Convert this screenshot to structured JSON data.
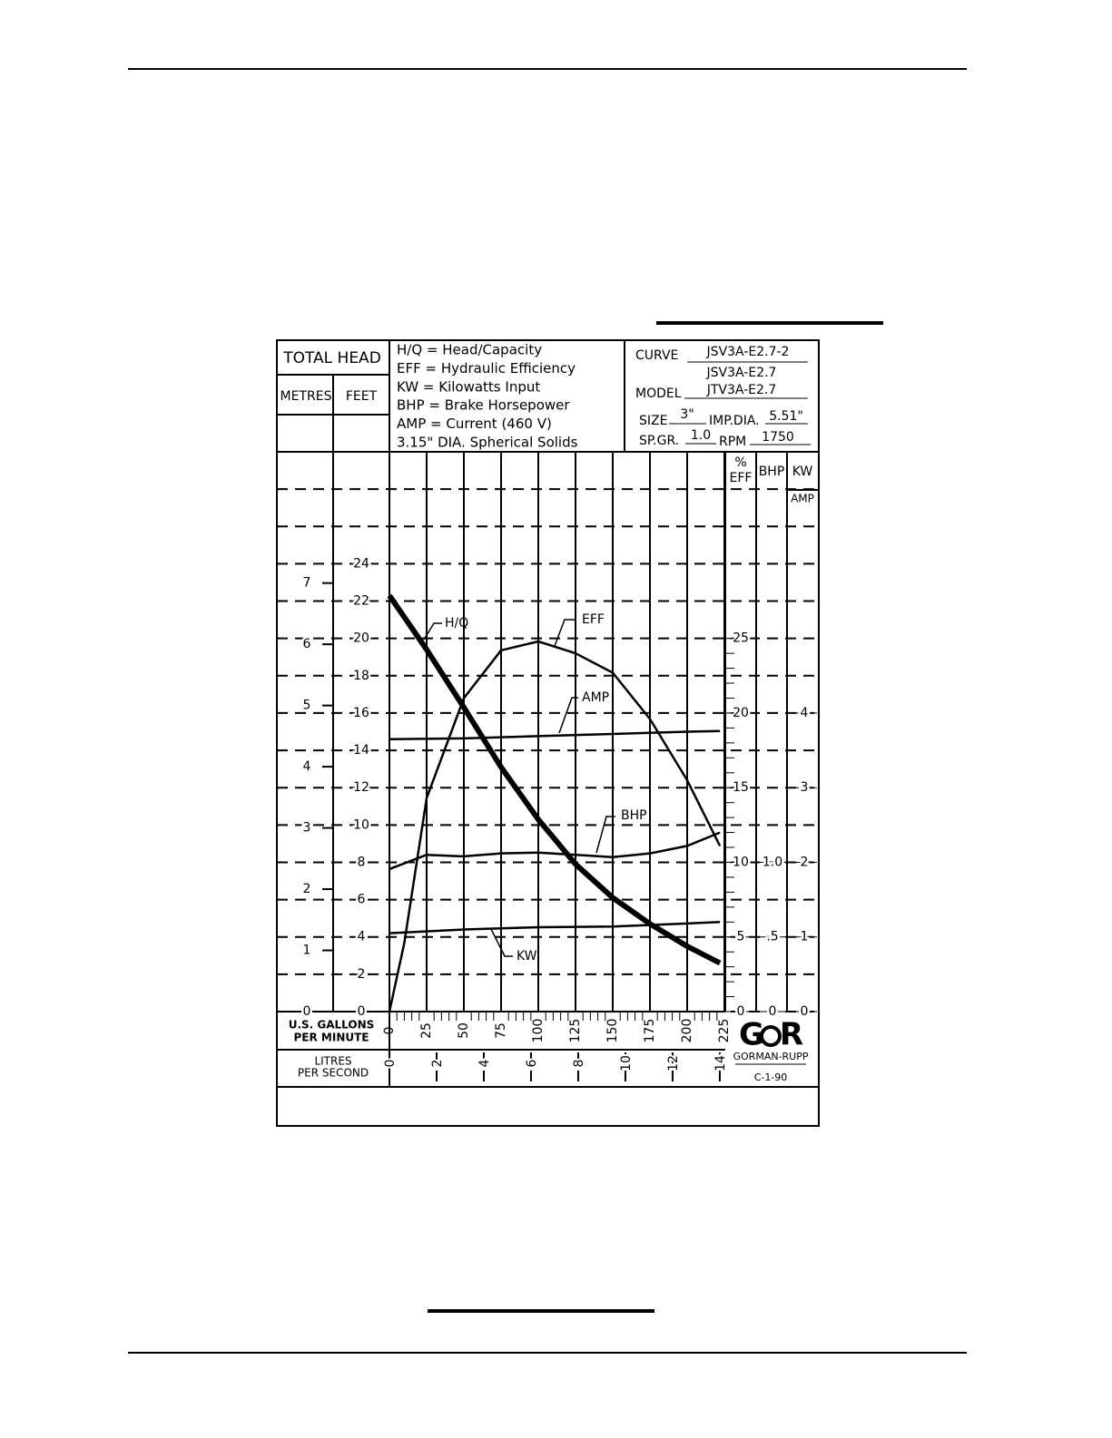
{
  "chart_data": {
    "type": "line",
    "title": [
      "TOTAL HEAD"
    ],
    "head_units": [
      "METRES",
      "FEET"
    ],
    "legend_text": [
      "H/Q = Head/Capacity",
      "EFF = Hydraulic Efficiency",
      "KW  = Kilowatts Input",
      "BHP = Brake Horsepower",
      "AMP = Current (460 V)",
      "3.15\" DIA. Spherical Solids"
    ],
    "info": {
      "curve_label": "CURVE",
      "curve": "JSV3A-E2.7-2",
      "model_top": "JSV3A-E2.7",
      "model_label": "MODEL",
      "model": "JTV3A-E2.7",
      "size_label": "SIZE",
      "size": "3\"",
      "imp_label": "IMP.DIA.",
      "imp": "5.51\"",
      "spgr_label": "SP.GR.",
      "spgr": "1.0",
      "rpm_label": "RPM",
      "rpm": "1750"
    },
    "x_label": [
      "U.S. GALLONS",
      "PER MINUTE"
    ],
    "lps_label": [
      "LITRES",
      "PER SECOND"
    ],
    "xlim": [
      0,
      225
    ],
    "xticks": [
      0,
      25,
      50,
      75,
      100,
      125,
      150,
      175,
      200,
      225
    ],
    "lps_lim": [
      0,
      14.195
    ],
    "lps_ticks": [
      0,
      2,
      4,
      6,
      8,
      10,
      12,
      14
    ],
    "ylim": [
      0,
      30
    ],
    "yticks": [
      0,
      2,
      4,
      6,
      8,
      10,
      12,
      14,
      16,
      18,
      20,
      22,
      24
    ],
    "metres_lim": [
      0,
      9.144
    ],
    "metres_ticks": [
      0,
      1,
      2,
      3,
      4,
      5,
      6,
      7
    ],
    "eff_header": [
      "%",
      "EFF"
    ],
    "eff_lim": [
      0,
      37.5
    ],
    "eff_ticks": [
      0,
      5,
      10,
      15,
      20,
      25
    ],
    "bhp_header": "BHP",
    "bhp_lim": [
      0,
      3.75
    ],
    "bhp_ticks": [
      0,
      {
        "value": 0.5,
        "label": ".5"
      },
      {
        "value": 1,
        "label": "1.0"
      }
    ],
    "kw_header": "KW",
    "amp_header": "AMP",
    "kw_lim": [
      0,
      7.5
    ],
    "kw_ticks": [
      0,
      1,
      2,
      3,
      4
    ],
    "grid": true,
    "series": [
      {
        "name": "H/Q",
        "axis": "y",
        "color": "#000000",
        "x": [
          0,
          25,
          50,
          75,
          100,
          125,
          150,
          175,
          200,
          222
        ],
        "values": [
          22.3,
          19.4,
          16.3,
          13.1,
          10.3,
          7.9,
          6.1,
          4.7,
          3.5,
          2.6
        ]
      },
      {
        "name": "EFF",
        "axis": "eff",
        "color": "#000000",
        "x": [
          0,
          10,
          25,
          50,
          75,
          100,
          125,
          150,
          175,
          200,
          222
        ],
        "values": [
          0,
          4.6,
          14.3,
          21.0,
          24.2,
          24.8,
          24.0,
          22.7,
          19.6,
          15.5,
          11.1
        ]
      },
      {
        "name": "AMP",
        "axis": "kw",
        "color": "#000000",
        "x": [
          0,
          50,
          100,
          150,
          200,
          222
        ],
        "values": [
          3.65,
          3.66,
          3.69,
          3.72,
          3.75,
          3.76
        ]
      },
      {
        "name": "BHP",
        "axis": "bhp",
        "color": "#000000",
        "x": [
          0,
          25,
          50,
          75,
          100,
          125,
          150,
          175,
          200,
          222
        ],
        "values": [
          0.955,
          1.05,
          1.04,
          1.06,
          1.065,
          1.05,
          1.035,
          1.06,
          1.11,
          1.2
        ]
      },
      {
        "name": "KW",
        "axis": "kw",
        "color": "#000000",
        "x": [
          0,
          50,
          100,
          150,
          200,
          222
        ],
        "values": [
          1.05,
          1.1,
          1.13,
          1.14,
          1.18,
          1.2
        ]
      }
    ],
    "logo_letters": [
      "G",
      "R"
    ],
    "brand": "GORMAN-RUPP",
    "code": "C-1-90"
  }
}
